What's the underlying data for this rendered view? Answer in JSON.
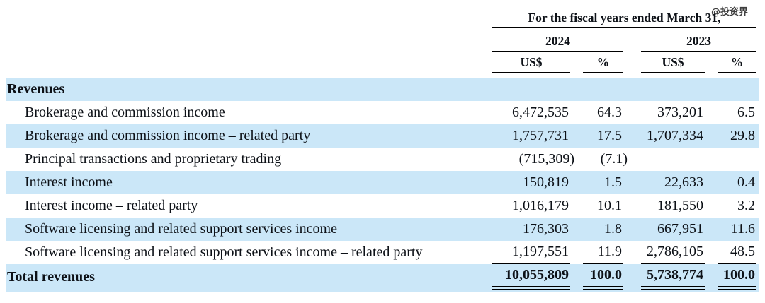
{
  "watermark": "@投资界",
  "header": {
    "title": "For the fiscal years ended March 31,",
    "year_2024": "2024",
    "year_2023": "2023",
    "unit_currency": "US$",
    "unit_percent": "%"
  },
  "table": {
    "section_label": "Revenues",
    "rows": [
      {
        "label": "Brokerage and commission income",
        "us_2024": "6,472,535",
        "pct_2024": "64.3",
        "us_2023": "373,201",
        "pct_2023": "6.5"
      },
      {
        "label": "Brokerage and commission income – related party",
        "us_2024": "1,757,731",
        "pct_2024": "17.5",
        "us_2023": "1,707,334",
        "pct_2023": "29.8"
      },
      {
        "label": "Principal transactions and proprietary trading",
        "us_2024": "(715,309)",
        "pct_2024": "(7.1)",
        "us_2023": "—",
        "pct_2023": "—"
      },
      {
        "label": "Interest income",
        "us_2024": "150,819",
        "pct_2024": "1.5",
        "us_2023": "22,633",
        "pct_2023": "0.4"
      },
      {
        "label": "Interest income – related party",
        "us_2024": "1,016,179",
        "pct_2024": "10.1",
        "us_2023": "181,550",
        "pct_2023": "3.2"
      },
      {
        "label": "Software licensing and related support services income",
        "us_2024": "176,303",
        "pct_2024": "1.8",
        "us_2023": "667,951",
        "pct_2023": "11.6"
      },
      {
        "label": "Software licensing and related support services income – related party",
        "us_2024": "1,197,551",
        "pct_2024": "11.9",
        "us_2023": "2,786,105",
        "pct_2023": "48.5"
      }
    ],
    "total": {
      "label": "Total revenues",
      "us_2024": "10,055,809",
      "pct_2024": "100.0",
      "us_2023": "5,738,774",
      "pct_2023": "100.0"
    }
  },
  "colors": {
    "row_highlight": "#cbe7f8",
    "text": "#0d1117",
    "rule": "#000000"
  }
}
